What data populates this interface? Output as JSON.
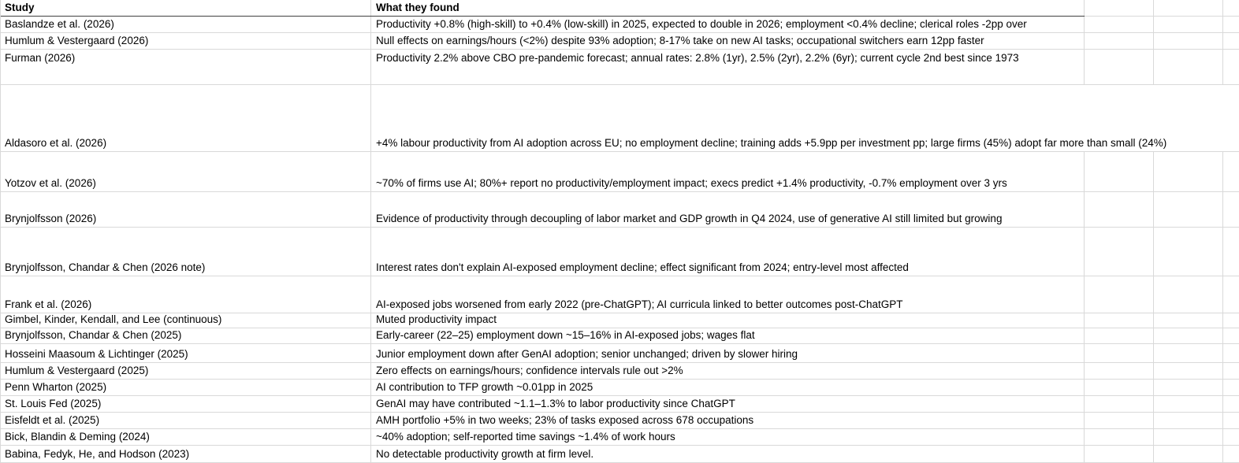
{
  "table": {
    "columns": [
      {
        "label": "Study"
      },
      {
        "label": "What they found"
      }
    ],
    "rows": [
      {
        "study": "Baslandze et al. (2026)",
        "found": "Productivity +0.8% (high-skill) to +0.4% (low-skill) in 2025, expected to double in 2026; employment <0.4% decline; clerical roles -2pp over"
      },
      {
        "study": "Humlum & Vestergaard (2026)",
        "found": "Null effects on earnings/hours (<2%) despite 93% adoption; 8-17% take on new AI tasks; occupational switchers earn 12pp faster"
      },
      {
        "study": "Furman (2026)",
        "found": "Productivity 2.2% above CBO pre-pandemic forecast; annual rates: 2.8% (1yr), 2.5% (2yr), 2.2% (6yr); current cycle 2nd best since 1973"
      },
      {
        "study": "Aldasoro et al. (2026)",
        "found": "+4% labour productivity from AI adoption across EU; no employment decline; training adds +5.9pp per investment pp; large firms (45%) adopt far more than small (24%)"
      },
      {
        "study": "Yotzov et al. (2026)",
        "found": "~70% of firms use AI; 80%+ report no productivity/employment impact; execs predict +1.4% productivity, -0.7% employment over 3 yrs"
      },
      {
        "study": "Brynjolfsson (2026)",
        "found": "Evidence of productivity through decoupling of labor market and GDP growth in Q4 2024, use of generative AI still limited but growing"
      },
      {
        "study": "Brynjolfsson, Chandar & Chen (2026 note)",
        "found": "Interest rates don't explain AI-exposed employment decline; effect significant from 2024; entry-level most affected"
      },
      {
        "study": "Frank et al. (2026)",
        "found": "AI-exposed jobs worsened from early 2022 (pre-ChatGPT); AI curricula linked to better outcomes post-ChatGPT"
      },
      {
        "study": "Gimbel, Kinder, Kendall, and Lee (continuous)",
        "found": "Muted productivity impact"
      },
      {
        "study": "Brynjolfsson, Chandar & Chen (2025)",
        "found": "Early-career (22–25) employment down ~15–16% in AI-exposed jobs; wages flat"
      },
      {
        "study": "Hosseini Maasoum & Lichtinger (2025)",
        "found": "Junior employment down after GenAI adoption; senior unchanged; driven by slower hiring"
      },
      {
        "study": "Humlum & Vestergaard (2025)",
        "found": "Zero effects on earnings/hours; confidence intervals rule out >2%"
      },
      {
        "study": "Penn Wharton (2025)",
        "found": "AI contribution to TFP growth ~0.01pp in 2025"
      },
      {
        "study": "St. Louis Fed (2025)",
        "found": "GenAI may have contributed ~1.1–1.3% to labor productivity since ChatGPT"
      },
      {
        "study": "Eisfeldt et al. (2025)",
        "found": "AMH portfolio +5% in two weeks; 23% of tasks exposed across 678 occupations"
      },
      {
        "study": "Bick, Blandin & Deming (2024)",
        "found": "~40% adoption; self-reported time savings ~1.4% of work hours"
      },
      {
        "study": "Babina, Fedyk, He, and Hodson (2023)",
        "found": "No detectable productivity growth at firm level."
      }
    ]
  },
  "colors": {
    "gridline": "#d9d9d9",
    "header_bottom_border": "#404040",
    "text": "#000000",
    "background": "#ffffff"
  }
}
